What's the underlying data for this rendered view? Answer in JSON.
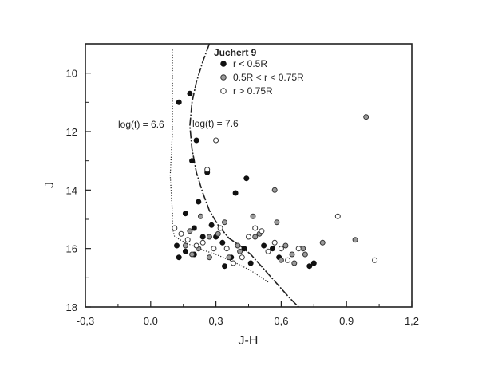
{
  "chart_data": {
    "type": "scatter",
    "title": "",
    "xlabel": "J-H",
    "ylabel": "J",
    "xlim": [
      -0.3,
      1.2
    ],
    "ylim": [
      18,
      9
    ],
    "y_inverted": true,
    "grid": false,
    "x_ticks": [
      {
        "v": -0.3,
        "label": "-0,3"
      },
      {
        "v": 0.0,
        "label": "0.0"
      },
      {
        "v": 0.3,
        "label": "0,3"
      },
      {
        "v": 0.6,
        "label": "0,6"
      },
      {
        "v": 0.9,
        "label": "0.9"
      },
      {
        "v": 1.2,
        "label": "1,2"
      }
    ],
    "y_ticks": [
      {
        "v": 10,
        "label": "10"
      },
      {
        "v": 12,
        "label": "12"
      },
      {
        "v": 14,
        "label": "14"
      },
      {
        "v": 16,
        "label": "16"
      },
      {
        "v": 18,
        "label": "18"
      }
    ],
    "legend": {
      "placement": "top",
      "title": "Juchert 9",
      "entries": [
        "r < 0.5R",
        "0.5R < r < 0.75R",
        "r > 0.75R"
      ]
    },
    "annotations": [
      {
        "text": "log(t) = 6.6",
        "x": -0.11,
        "y": 12.2
      },
      {
        "text": "log(t) = 7.6",
        "x": 0.19,
        "y": 12.15
      }
    ],
    "isochrones": [
      {
        "name": "log(t) = 6.6",
        "style": "dotted",
        "x": [
          0.1,
          0.1,
          0.1,
          0.09,
          0.1,
          0.1,
          0.11,
          0.16,
          0.22,
          0.3,
          0.38,
          0.46,
          0.54
        ],
        "y": [
          9.2,
          10.5,
          12.0,
          13.5,
          14.8,
          15.3,
          15.6,
          15.8,
          16.0,
          16.2,
          16.45,
          16.75,
          17.15
        ]
      },
      {
        "name": "log(t) = 7.6",
        "style": "solid",
        "x": [
          0.27,
          0.24,
          0.21,
          0.19,
          0.18,
          0.19,
          0.21,
          0.24,
          0.27,
          0.31,
          0.36,
          0.42,
          0.46,
          0.52,
          0.58,
          0.64,
          0.68
        ],
        "y": [
          9.0,
          9.6,
          10.3,
          11.0,
          11.8,
          12.6,
          13.4,
          14.1,
          14.7,
          15.2,
          15.65,
          15.95,
          16.2,
          16.7,
          17.2,
          17.7,
          18.0
        ]
      }
    ],
    "series": [
      {
        "name": "r < 0.5R",
        "marker": "filled",
        "x": [
          0.13,
          0.18,
          0.19,
          0.21,
          0.22,
          0.26,
          0.44,
          0.39,
          0.16,
          0.2,
          0.24,
          0.12,
          0.3,
          0.33,
          0.34,
          0.37,
          0.43,
          0.46,
          0.13,
          0.16,
          0.2,
          0.28,
          0.52,
          0.56,
          0.59,
          0.73,
          0.75
        ],
        "y": [
          11.0,
          10.7,
          13.0,
          12.3,
          14.4,
          13.4,
          13.6,
          14.1,
          14.8,
          15.3,
          15.6,
          15.9,
          15.6,
          15.8,
          16.6,
          16.3,
          16.0,
          16.5,
          16.3,
          16.1,
          16.2,
          15.2,
          15.9,
          16.0,
          16.3,
          16.6,
          16.5
        ]
      },
      {
        "name": "0.5R < r < 0.75R",
        "marker": "gray",
        "x": [
          0.57,
          0.18,
          0.23,
          0.27,
          0.34,
          0.4,
          0.47,
          0.5,
          0.58,
          0.62,
          0.65,
          0.7,
          0.16,
          0.19,
          0.22,
          0.27,
          0.31,
          0.36,
          0.41,
          0.48,
          0.6,
          0.66,
          0.71,
          0.79,
          0.94,
          0.99
        ],
        "y": [
          14.0,
          15.4,
          14.9,
          15.6,
          15.1,
          15.9,
          14.9,
          15.5,
          15.1,
          15.9,
          16.2,
          16.0,
          15.9,
          16.2,
          16.0,
          16.3,
          15.5,
          16.3,
          16.1,
          15.6,
          16.4,
          16.5,
          16.2,
          15.8,
          15.7,
          11.5
        ]
      },
      {
        "name": "r > 0.75R",
        "marker": "open",
        "x": [
          0.11,
          0.3,
          0.26,
          0.14,
          0.17,
          0.21,
          0.24,
          0.29,
          0.32,
          0.35,
          0.38,
          0.42,
          0.45,
          0.48,
          0.51,
          0.54,
          0.57,
          0.6,
          0.63,
          0.68,
          0.86,
          1.03
        ],
        "y": [
          15.3,
          12.3,
          13.3,
          15.5,
          15.7,
          15.9,
          15.8,
          16.0,
          15.3,
          16.0,
          16.5,
          16.3,
          15.6,
          15.3,
          15.4,
          16.1,
          15.8,
          16.0,
          16.4,
          16.0,
          14.9,
          16.4
        ]
      }
    ]
  }
}
